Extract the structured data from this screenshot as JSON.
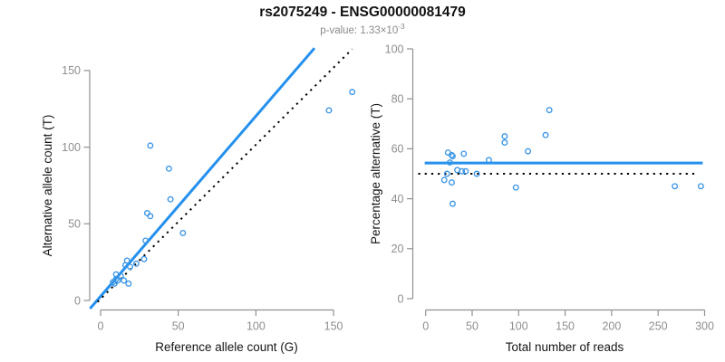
{
  "header": {
    "title": "rs2075249 - ENSG00000081479",
    "subtitle_main": "p-value: 1.33×10",
    "subtitle_exponent": "-3"
  },
  "colors": {
    "accent_blue": "#2490EE",
    "point_blue": "#3B96E6",
    "axis_gray": "#909090",
    "tick_label_gray": "#8e8e8e",
    "text_black": "#151515",
    "dotted_black": "#000000"
  },
  "chart_data": [
    {
      "type": "scatter",
      "name": "allele-counts-plot",
      "xlabel": "Reference allele count (G)",
      "ylabel": "Alternative allele count (T)",
      "xlim": [
        0,
        160
      ],
      "ylim": [
        0,
        165
      ],
      "x_ticks": [
        0,
        50,
        100,
        150
      ],
      "y_ticks": [
        0,
        50,
        100,
        150
      ],
      "grid": false,
      "legend": false,
      "points": [
        [
          8,
          12
        ],
        [
          9,
          11
        ],
        [
          10,
          14
        ],
        [
          10,
          17
        ],
        [
          11,
          13
        ],
        [
          13,
          16
        ],
        [
          15,
          13
        ],
        [
          18,
          11
        ],
        [
          16,
          23
        ],
        [
          19,
          22
        ],
        [
          17,
          26
        ],
        [
          23,
          24
        ],
        [
          28,
          27
        ],
        [
          29,
          39
        ],
        [
          30,
          57
        ],
        [
          32,
          55
        ],
        [
          32,
          101
        ],
        [
          44,
          86
        ],
        [
          45,
          66
        ],
        [
          53,
          44
        ],
        [
          147,
          124
        ],
        [
          162,
          136
        ]
      ],
      "lines": [
        {
          "name": "fit-line",
          "style": "solid",
          "x1": -6.8,
          "y1": -5.3,
          "x2": 137.7,
          "y2": 164.6
        },
        {
          "name": "identity-line",
          "style": "dotted",
          "x1": -2,
          "y1": -1,
          "x2": 162,
          "y2": 164
        }
      ]
    },
    {
      "type": "scatter",
      "name": "percentage-alternative-plot",
      "xlabel": "Total number of reads",
      "ylabel": "Percentage alternative (T)",
      "xlim": [
        0,
        300
      ],
      "ylim": [
        0,
        100
      ],
      "x_ticks": [
        0,
        50,
        100,
        150,
        200,
        250,
        300
      ],
      "y_ticks": [
        0,
        20,
        40,
        60,
        80,
        100
      ],
      "grid": false,
      "legend": false,
      "points": [
        [
          20,
          47.5
        ],
        [
          23,
          50
        ],
        [
          24,
          58.5
        ],
        [
          26,
          54.5
        ],
        [
          28,
          57.5
        ],
        [
          29,
          57
        ],
        [
          28,
          46.5
        ],
        [
          29,
          38
        ],
        [
          34,
          51.5
        ],
        [
          39,
          51
        ],
        [
          41,
          58
        ],
        [
          43,
          51
        ],
        [
          55,
          50
        ],
        [
          68,
          55.5
        ],
        [
          85,
          65
        ],
        [
          85,
          62.5
        ],
        [
          97,
          44.5
        ],
        [
          110,
          59
        ],
        [
          129,
          65.5
        ],
        [
          133,
          75.5
        ],
        [
          268,
          45
        ],
        [
          296,
          45
        ]
      ],
      "lines": [
        {
          "name": "fit-line",
          "style": "solid",
          "x1": -1,
          "y1": 54.3,
          "x2": 298,
          "y2": 54.3
        },
        {
          "name": "expected-line",
          "style": "dotted",
          "x1": -8,
          "y1": 50,
          "x2": 293,
          "y2": 50
        }
      ]
    }
  ]
}
